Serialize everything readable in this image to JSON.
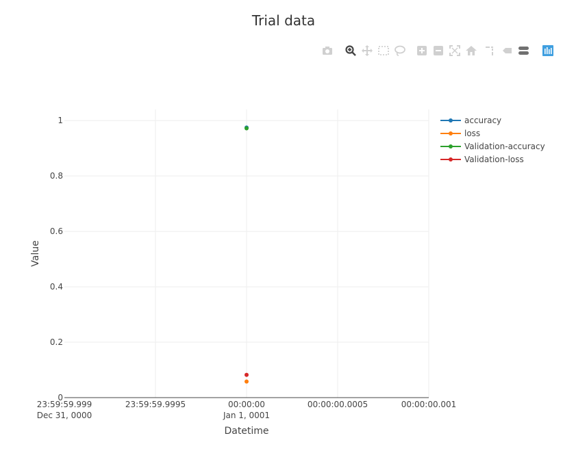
{
  "modebar": {
    "buttons": [
      {
        "icon": "camera-icon",
        "title": "Download plot as a png"
      },
      {
        "icon": "zoom-icon",
        "title": "Zoom"
      },
      {
        "icon": "pan-icon",
        "title": "Pan"
      },
      {
        "icon": "box-select-icon",
        "title": "Box Select"
      },
      {
        "icon": "lasso-select-icon",
        "title": "Lasso Select"
      },
      {
        "icon": "zoom-in-icon",
        "title": "Zoom in"
      },
      {
        "icon": "zoom-out-icon",
        "title": "Zoom out"
      },
      {
        "icon": "autoscale-icon",
        "title": "Autoscale"
      },
      {
        "icon": "reset-axes-icon",
        "title": "Reset axes"
      },
      {
        "icon": "spike-lines-icon",
        "title": "Toggle Spike Lines"
      },
      {
        "icon": "hover-closest-icon",
        "title": "Show closest data on hover"
      },
      {
        "icon": "hover-compare-icon",
        "title": "Compare data on hover"
      },
      {
        "icon": "plotly-logo-icon",
        "title": "Produced with Plotly"
      }
    ],
    "active_color": "#444444",
    "inactive_color": "#d0d0d0",
    "logo_color": "#3f9fe0"
  },
  "chart_data": {
    "type": "scatter",
    "title": "Trial data",
    "xlabel": "Datetime",
    "ylabel": "Value",
    "x_axis_type": "date",
    "x_range": [
      "0000-12-31 23:59:59.999",
      "0001-01-01 00:00:00.001"
    ],
    "ylim": [
      0,
      1.04
    ],
    "grid": true,
    "legend_position": "top-right",
    "x_ticks": [
      {
        "line1": "23:59:59.999",
        "line2": "Dec 31, 0000"
      },
      {
        "line1": "23:59:59.9995",
        "line2": ""
      },
      {
        "line1": "00:00:00",
        "line2": "Jan 1, 0001"
      },
      {
        "line1": "00:00:00.0005",
        "line2": ""
      },
      {
        "line1": "00:00:00.001",
        "line2": ""
      }
    ],
    "y_ticks": [
      0,
      0.2,
      0.4,
      0.6,
      0.8,
      1
    ],
    "y_tick_labels": [
      "0",
      "0.2",
      "0.4",
      "0.6",
      "0.8",
      "1"
    ],
    "series": [
      {
        "name": "accuracy",
        "color": "#1f77b4",
        "points": [
          {
            "x": "0001-01-01 00:00:00",
            "y": 0.975
          }
        ]
      },
      {
        "name": "loss",
        "color": "#ff7f0e",
        "points": [
          {
            "x": "0001-01-01 00:00:00",
            "y": 0.058
          }
        ]
      },
      {
        "name": "Validation-accuracy",
        "color": "#2ca02c",
        "points": [
          {
            "x": "0001-01-01 00:00:00",
            "y": 0.972
          }
        ]
      },
      {
        "name": "Validation-loss",
        "color": "#d62728",
        "points": [
          {
            "x": "0001-01-01 00:00:00",
            "y": 0.082
          }
        ]
      }
    ]
  }
}
